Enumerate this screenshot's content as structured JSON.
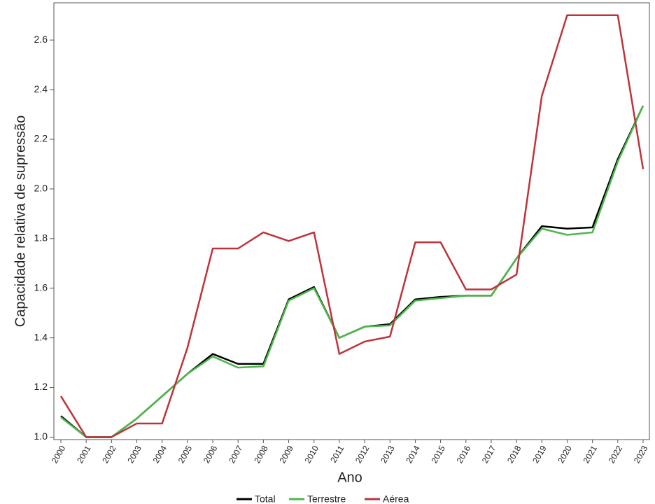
{
  "chart_data": {
    "type": "line",
    "x_label": "Ano",
    "y_label": "Capacidade relativa de supressão",
    "categories": [
      "2000",
      "2001",
      "2002",
      "2003",
      "2004",
      "2005",
      "2006",
      "2007",
      "2008",
      "2009",
      "2010",
      "2011",
      "2012",
      "2013",
      "2014",
      "2015",
      "2016",
      "2017",
      "2018",
      "2019",
      "2020",
      "2021",
      "2022",
      "2023"
    ],
    "series": [
      {
        "name": "Total",
        "color": "#000000",
        "values": [
          1.085,
          1.0,
          1.0,
          1.075,
          1.165,
          1.255,
          1.335,
          1.295,
          1.295,
          1.555,
          1.605,
          1.4,
          1.445,
          1.455,
          1.555,
          1.565,
          1.57,
          1.57,
          1.72,
          1.85,
          1.84,
          1.845,
          2.12,
          2.335
        ]
      },
      {
        "name": "Terrestre",
        "color": "#4cb84c",
        "values": [
          1.08,
          1.0,
          1.0,
          1.075,
          1.165,
          1.255,
          1.325,
          1.28,
          1.285,
          1.55,
          1.6,
          1.4,
          1.445,
          1.45,
          1.55,
          1.56,
          1.57,
          1.57,
          1.72,
          1.84,
          1.815,
          1.825,
          2.11,
          2.335
        ]
      },
      {
        "name": "Aérea",
        "color": "#c0323a",
        "values": [
          1.165,
          1.0,
          1.0,
          1.055,
          1.055,
          1.36,
          1.76,
          1.76,
          1.825,
          1.79,
          1.825,
          1.335,
          1.385,
          1.405,
          1.785,
          1.785,
          1.595,
          1.595,
          1.655,
          2.375,
          2.7,
          2.7,
          2.7,
          2.08
        ]
      }
    ],
    "ylim": [
      0.99,
      2.75
    ],
    "yticks": [
      {
        "value": 1,
        "label": "1.0"
      },
      1.2,
      1.4,
      1.6,
      1.8,
      {
        "value": 2,
        "label": "2.0"
      },
      2.2,
      2.4,
      2.6
    ],
    "legend": "bottom"
  }
}
